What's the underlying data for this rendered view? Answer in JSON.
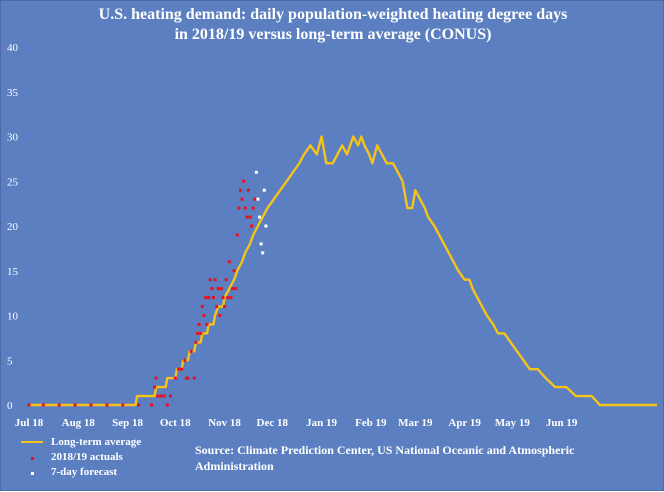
{
  "chart_data": {
    "type": "line",
    "title": "U.S. heating demand: daily population-weighted heating degree days",
    "subtitle": "in 2018/19 versus long-term average (CONUS)",
    "xlabel": "",
    "ylabel": "",
    "ylim": [
      0,
      40
    ],
    "yticks": [
      0,
      5,
      10,
      15,
      20,
      25,
      30,
      35,
      40
    ],
    "xlim": [
      "2018-07-01",
      "2019-07-31"
    ],
    "xticks": [
      {
        "date": "2018-07-01",
        "label": "Jul 18"
      },
      {
        "date": "2018-08-01",
        "label": "Aug 18"
      },
      {
        "date": "2018-09-01",
        "label": "Sep 18"
      },
      {
        "date": "2018-10-01",
        "label": "Oct 18"
      },
      {
        "date": "2018-11-01",
        "label": "Nov 18"
      },
      {
        "date": "2018-12-01",
        "label": "Dec 18"
      },
      {
        "date": "2019-01-01",
        "label": "Jan 19"
      },
      {
        "date": "2019-02-01",
        "label": "Feb 19"
      },
      {
        "date": "2019-03-01",
        "label": "Mar 19"
      },
      {
        "date": "2019-04-01",
        "label": "Apr 19"
      },
      {
        "date": "2019-05-01",
        "label": "May 19"
      },
      {
        "date": "2019-06-01",
        "label": "Jun 19"
      }
    ],
    "grid": false,
    "legend_placement": "bottom-left",
    "series": [
      {
        "name": "Long-term average",
        "color": "#f6c31a",
        "style": "step-line",
        "points": [
          [
            "2018-07-01",
            0
          ],
          [
            "2018-09-06",
            0
          ],
          [
            "2018-09-07",
            1
          ],
          [
            "2018-09-18",
            1
          ],
          [
            "2018-09-19",
            2
          ],
          [
            "2018-09-25",
            2
          ],
          [
            "2018-09-26",
            3
          ],
          [
            "2018-10-01",
            3
          ],
          [
            "2018-10-02",
            4
          ],
          [
            "2018-10-05",
            4
          ],
          [
            "2018-10-06",
            5
          ],
          [
            "2018-10-09",
            5
          ],
          [
            "2018-10-10",
            6
          ],
          [
            "2018-10-13",
            6
          ],
          [
            "2018-10-14",
            7
          ],
          [
            "2018-10-17",
            7
          ],
          [
            "2018-10-18",
            8
          ],
          [
            "2018-10-21",
            8
          ],
          [
            "2018-10-22",
            9
          ],
          [
            "2018-10-25",
            9
          ],
          [
            "2018-10-26",
            10
          ],
          [
            "2018-10-28",
            11
          ],
          [
            "2018-10-31",
            11
          ],
          [
            "2018-11-01",
            12
          ],
          [
            "2018-11-04",
            13
          ],
          [
            "2018-11-07",
            14
          ],
          [
            "2018-11-09",
            15
          ],
          [
            "2018-11-12",
            16
          ],
          [
            "2018-11-14",
            17
          ],
          [
            "2018-11-17",
            18
          ],
          [
            "2018-11-19",
            19
          ],
          [
            "2018-11-22",
            20
          ],
          [
            "2018-11-25",
            21
          ],
          [
            "2018-11-28",
            22
          ],
          [
            "2018-12-02",
            23
          ],
          [
            "2018-12-06",
            24
          ],
          [
            "2018-12-10",
            25
          ],
          [
            "2018-12-14",
            26
          ],
          [
            "2018-12-18",
            27
          ],
          [
            "2018-12-21",
            28
          ],
          [
            "2018-12-25",
            29
          ],
          [
            "2018-12-29",
            28
          ],
          [
            "2019-01-01",
            30
          ],
          [
            "2019-01-04",
            27
          ],
          [
            "2019-01-08",
            27
          ],
          [
            "2019-01-11",
            28
          ],
          [
            "2019-01-14",
            29
          ],
          [
            "2019-01-17",
            28
          ],
          [
            "2019-01-19",
            29
          ],
          [
            "2019-01-21",
            30
          ],
          [
            "2019-01-24",
            29
          ],
          [
            "2019-01-26",
            30
          ],
          [
            "2019-01-28",
            29
          ],
          [
            "2019-01-31",
            28
          ],
          [
            "2019-02-02",
            27
          ],
          [
            "2019-02-05",
            29
          ],
          [
            "2019-02-08",
            28
          ],
          [
            "2019-02-11",
            27
          ],
          [
            "2019-02-15",
            27
          ],
          [
            "2019-02-18",
            26
          ],
          [
            "2019-02-21",
            25
          ],
          [
            "2019-02-24",
            22
          ],
          [
            "2019-02-27",
            22
          ],
          [
            "2019-03-01",
            24
          ],
          [
            "2019-03-04",
            23
          ],
          [
            "2019-03-07",
            22
          ],
          [
            "2019-03-09",
            21
          ],
          [
            "2019-03-13",
            20
          ],
          [
            "2019-03-16",
            19
          ],
          [
            "2019-03-19",
            18
          ],
          [
            "2019-03-22",
            17
          ],
          [
            "2019-03-25",
            16
          ],
          [
            "2019-03-28",
            15
          ],
          [
            "2019-04-01",
            14
          ],
          [
            "2019-04-04",
            14
          ],
          [
            "2019-04-06",
            13
          ],
          [
            "2019-04-09",
            12
          ],
          [
            "2019-04-12",
            11
          ],
          [
            "2019-04-15",
            10
          ],
          [
            "2019-04-19",
            9
          ],
          [
            "2019-04-22",
            8
          ],
          [
            "2019-04-26",
            8
          ],
          [
            "2019-04-30",
            7
          ],
          [
            "2019-05-04",
            6
          ],
          [
            "2019-05-08",
            5
          ],
          [
            "2019-05-12",
            4
          ],
          [
            "2019-05-17",
            4
          ],
          [
            "2019-05-22",
            3
          ],
          [
            "2019-05-28",
            2
          ],
          [
            "2019-06-04",
            2
          ],
          [
            "2019-06-10",
            1
          ],
          [
            "2019-06-20",
            1
          ],
          [
            "2019-06-25",
            0
          ],
          [
            "2019-07-31",
            0
          ]
        ]
      },
      {
        "name": "2018/19 actuals",
        "color": "#e8121f",
        "style": "dots",
        "points": [
          [
            "2018-07-01",
            0
          ],
          [
            "2018-07-10",
            0
          ],
          [
            "2018-07-20",
            0
          ],
          [
            "2018-07-30",
            0
          ],
          [
            "2018-08-09",
            0
          ],
          [
            "2018-08-19",
            0
          ],
          [
            "2018-08-29",
            0
          ],
          [
            "2018-09-08",
            0
          ],
          [
            "2018-09-16",
            0
          ],
          [
            "2018-09-18",
            2
          ],
          [
            "2018-09-19",
            3
          ],
          [
            "2018-09-20",
            1
          ],
          [
            "2018-09-22",
            1
          ],
          [
            "2018-09-24",
            1
          ],
          [
            "2018-09-26",
            0
          ],
          [
            "2018-09-28",
            1
          ],
          [
            "2018-10-01",
            3
          ],
          [
            "2018-10-03",
            4
          ],
          [
            "2018-10-05",
            4
          ],
          [
            "2018-10-07",
            5
          ],
          [
            "2018-10-08",
            3
          ],
          [
            "2018-10-09",
            3
          ],
          [
            "2018-10-11",
            6
          ],
          [
            "2018-10-13",
            3
          ],
          [
            "2018-10-14",
            7
          ],
          [
            "2018-10-15",
            8
          ],
          [
            "2018-10-16",
            9
          ],
          [
            "2018-10-17",
            8
          ],
          [
            "2018-10-18",
            11
          ],
          [
            "2018-10-19",
            10
          ],
          [
            "2018-10-20",
            12
          ],
          [
            "2018-10-21",
            9
          ],
          [
            "2018-10-22",
            12
          ],
          [
            "2018-10-23",
            14
          ],
          [
            "2018-10-24",
            13
          ],
          [
            "2018-10-25",
            12
          ],
          [
            "2018-10-26",
            14
          ],
          [
            "2018-10-27",
            11
          ],
          [
            "2018-10-28",
            13
          ],
          [
            "2018-10-29",
            10
          ],
          [
            "2018-10-30",
            13
          ],
          [
            "2018-10-31",
            12
          ],
          [
            "2018-11-01",
            11
          ],
          [
            "2018-11-02",
            14
          ],
          [
            "2018-11-03",
            12
          ],
          [
            "2018-11-04",
            16
          ],
          [
            "2018-11-05",
            12
          ],
          [
            "2018-11-06",
            13
          ],
          [
            "2018-11-07",
            15
          ],
          [
            "2018-11-08",
            13
          ],
          [
            "2018-11-09",
            19
          ],
          [
            "2018-11-10",
            22
          ],
          [
            "2018-11-11",
            24
          ],
          [
            "2018-11-12",
            23
          ],
          [
            "2018-11-13",
            25
          ],
          [
            "2018-11-14",
            22
          ],
          [
            "2018-11-15",
            21
          ],
          [
            "2018-11-16",
            24
          ],
          [
            "2018-11-17",
            21
          ],
          [
            "2018-11-18",
            20
          ],
          [
            "2018-11-19",
            22
          ],
          [
            "2018-11-20",
            23
          ]
        ]
      },
      {
        "name": "7-day forecast",
        "color": "#ffffff",
        "style": "dots",
        "points": [
          [
            "2018-11-21",
            26
          ],
          [
            "2018-11-22",
            23
          ],
          [
            "2018-11-23",
            21
          ],
          [
            "2018-11-24",
            18
          ],
          [
            "2018-11-25",
            17
          ],
          [
            "2018-11-26",
            24
          ],
          [
            "2018-11-27",
            20
          ]
        ]
      }
    ],
    "source": "Source: Climate Prediction Center, US National Oceanic and Atmospheric Administration"
  }
}
